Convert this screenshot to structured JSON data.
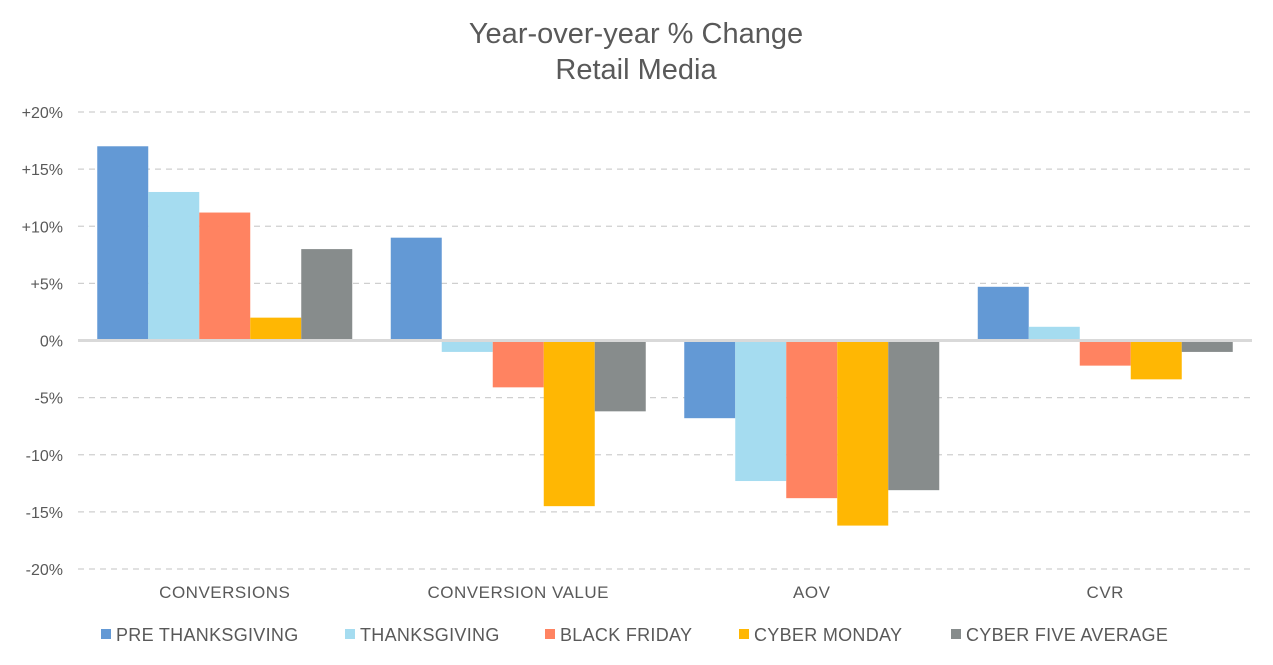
{
  "chart_data": {
    "type": "bar",
    "title": "Year-over-year % Change",
    "subtitle": "Retail Media",
    "categories": [
      "CONVERSIONS",
      "CONVERSION VALUE",
      "AOV",
      "CVR"
    ],
    "ylim": [
      -20,
      20
    ],
    "yticks": [
      20,
      15,
      10,
      5,
      0,
      -5,
      -10,
      -15,
      -20
    ],
    "ytick_labels": [
      "+20%",
      "+15%",
      "+10%",
      "+5%",
      "0%",
      "-5%",
      "-10%",
      "-15%",
      "-20%"
    ],
    "grid": true,
    "legend_position": "bottom",
    "series": [
      {
        "name": "PRE THANKSGIVING",
        "color": "#6399D5",
        "values": [
          17.0,
          9.0,
          -6.8,
          4.7
        ]
      },
      {
        "name": "THANKSGIVING",
        "color": "#A5DCF0",
        "values": [
          13.0,
          -1.0,
          -12.3,
          1.2
        ]
      },
      {
        "name": "BLACK FRIDAY",
        "color": "#FF8361",
        "values": [
          11.2,
          -4.1,
          -13.8,
          -2.2
        ]
      },
      {
        "name": "CYBER MONDAY",
        "color": "#FFB703",
        "values": [
          2.0,
          -14.5,
          -16.2,
          -3.4
        ]
      },
      {
        "name": "CYBER FIVE AVERAGE",
        "color": "#878C8C",
        "values": [
          8.0,
          -6.2,
          -13.1,
          -1.0
        ]
      }
    ]
  }
}
